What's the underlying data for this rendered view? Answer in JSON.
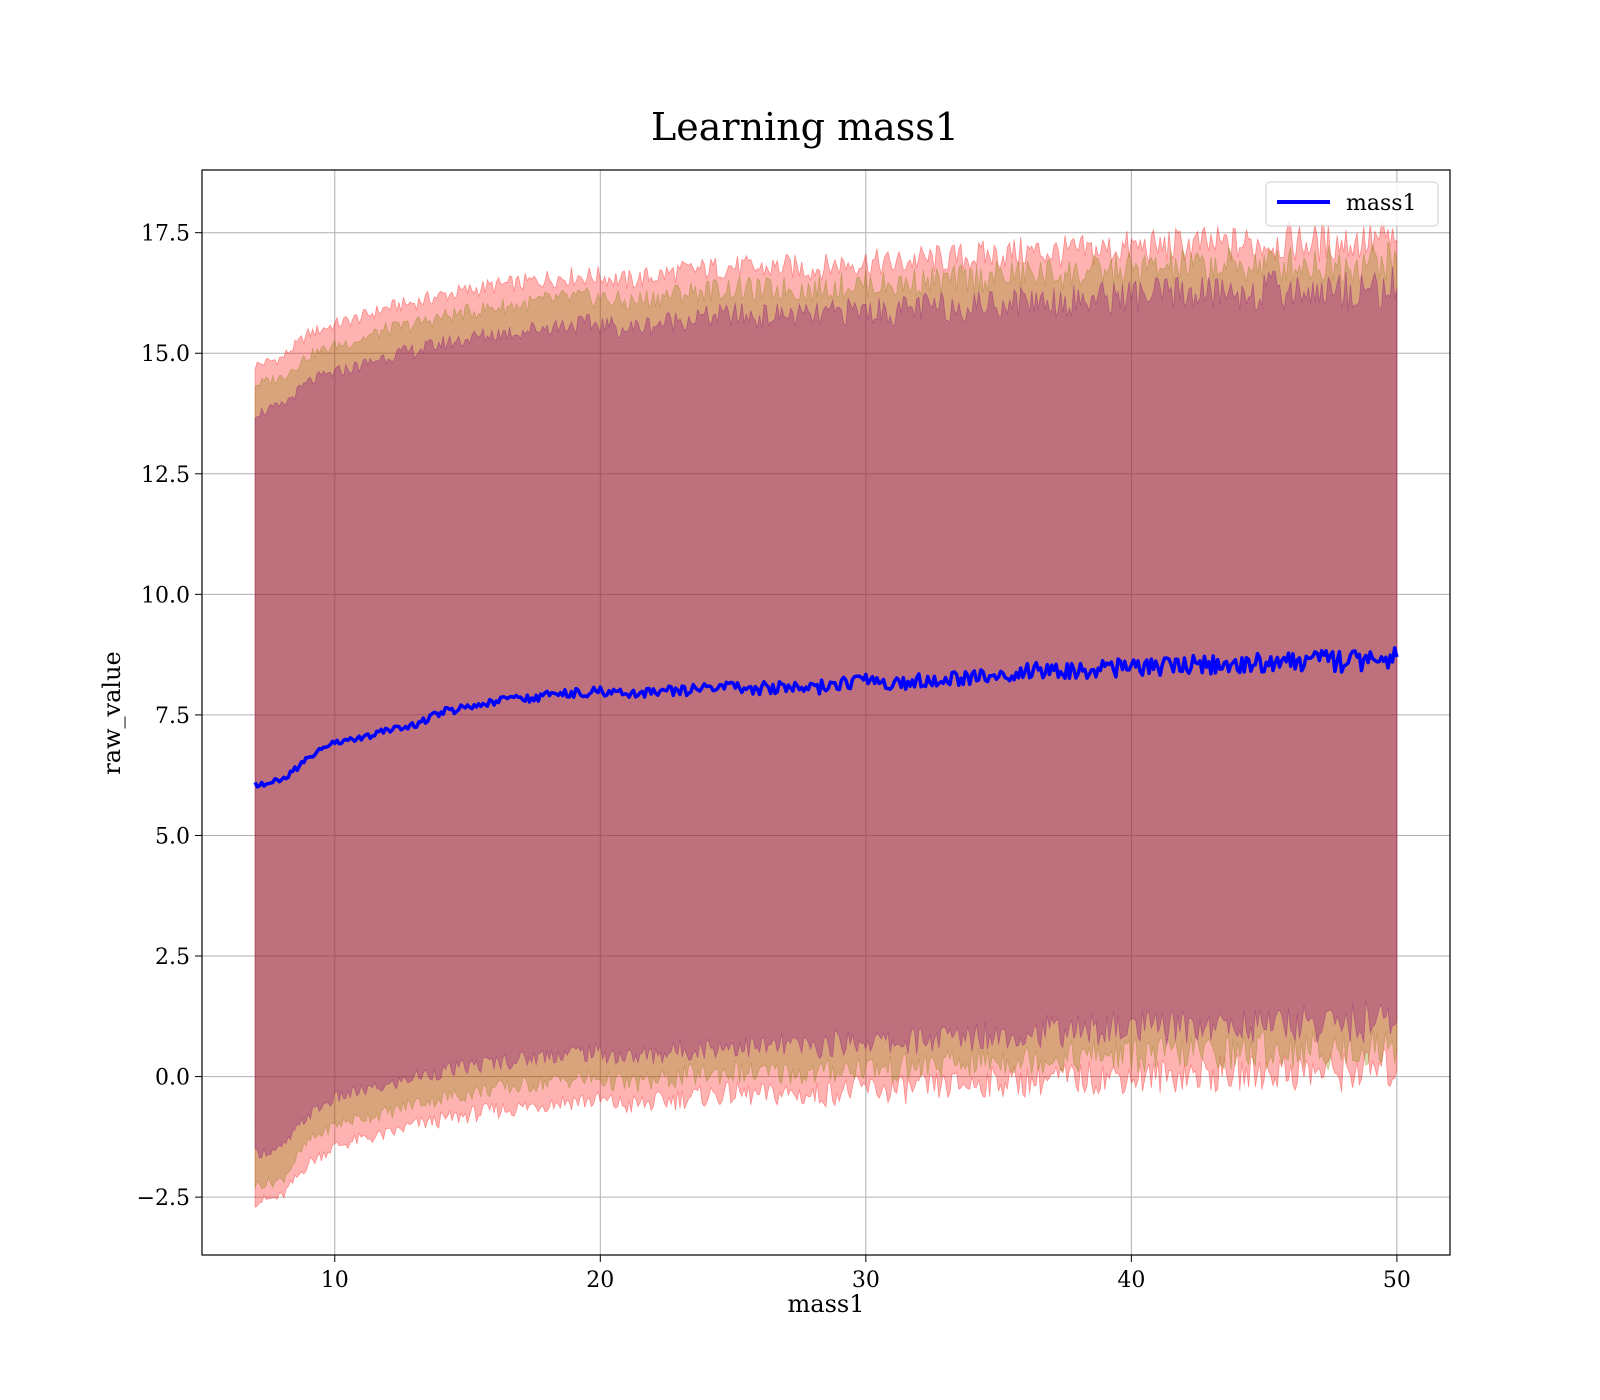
{
  "chart_data": {
    "type": "line",
    "title": "Learning mass1",
    "xlabel": "mass1",
    "ylabel": "raw_value",
    "xlim": [
      5,
      52
    ],
    "ylim": [
      -3.7,
      18.8
    ],
    "x_ticks": [
      10,
      20,
      30,
      40,
      50
    ],
    "x_tick_labels": [
      "10",
      "20",
      "30",
      "40",
      "50"
    ],
    "y_ticks": [
      -2.5,
      0.0,
      2.5,
      5.0,
      7.5,
      10.0,
      12.5,
      15.0,
      17.5
    ],
    "y_tick_labels": [
      "−2.5",
      "0.0",
      "2.5",
      "5.0",
      "7.5",
      "10.0",
      "12.5",
      "15.0",
      "17.5"
    ],
    "grid": true,
    "legend": {
      "placement": "top-right",
      "entries": [
        "mass1"
      ]
    },
    "series": [
      {
        "name": "mass1",
        "color": "#0000ff",
        "x": [
          7.0,
          8.0,
          9.0,
          10.0,
          11.0,
          12.0,
          13.0,
          14.0,
          15.0,
          16.0,
          17.0,
          18.0,
          19.0,
          20.0,
          21.0,
          22.0,
          23.0,
          24.0,
          25.0,
          26.0,
          27.0,
          28.0,
          29.0,
          30.0,
          31.0,
          32.0,
          33.0,
          34.0,
          35.0,
          36.0,
          37.0,
          38.0,
          39.0,
          40.0,
          41.0,
          42.0,
          43.0,
          44.0,
          45.0,
          46.0,
          47.0,
          48.0,
          49.0,
          50.0
        ],
        "y": [
          6.05,
          6.15,
          6.6,
          6.95,
          7.0,
          7.2,
          7.3,
          7.55,
          7.65,
          7.75,
          7.85,
          7.9,
          7.95,
          8.0,
          7.9,
          7.95,
          8.0,
          8.05,
          8.1,
          8.05,
          8.1,
          8.05,
          8.15,
          8.2,
          8.15,
          8.2,
          8.25,
          8.3,
          8.35,
          8.4,
          8.45,
          8.4,
          8.45,
          8.5,
          8.5,
          8.55,
          8.55,
          8.55,
          8.6,
          8.6,
          8.65,
          8.6,
          8.65,
          8.7
        ]
      }
    ],
    "bands": [
      {
        "color": "#ff0000",
        "opacity": 0.3,
        "upper": [
          14.75,
          14.9,
          15.4,
          15.6,
          15.75,
          15.95,
          16.05,
          16.2,
          16.3,
          16.4,
          16.45,
          16.55,
          16.6,
          16.6,
          16.5,
          16.6,
          16.7,
          16.75,
          16.8,
          16.75,
          16.8,
          16.75,
          16.85,
          16.9,
          16.85,
          16.95,
          16.95,
          17.0,
          17.05,
          17.1,
          17.1,
          17.1,
          17.15,
          17.2,
          17.2,
          17.25,
          17.25,
          17.25,
          17.3,
          17.3,
          17.3,
          17.3,
          17.35,
          17.35
        ],
        "lower": [
          -2.6,
          -2.5,
          -1.8,
          -1.45,
          -1.3,
          -1.2,
          -1.0,
          -0.9,
          -0.8,
          -0.7,
          -0.65,
          -0.55,
          -0.5,
          -0.5,
          -0.6,
          -0.55,
          -0.45,
          -0.4,
          -0.35,
          -0.4,
          -0.35,
          -0.4,
          -0.3,
          -0.25,
          -0.3,
          -0.25,
          -0.2,
          -0.15,
          -0.1,
          -0.1,
          -0.05,
          -0.05,
          0.0,
          0.0,
          0.0,
          0.05,
          0.05,
          0.05,
          0.1,
          0.1,
          0.1,
          0.1,
          0.15,
          0.15
        ]
      },
      {
        "color": "#808000",
        "opacity": 0.3,
        "upper": [
          14.35,
          14.5,
          14.95,
          15.15,
          15.3,
          15.5,
          15.6,
          15.75,
          15.85,
          15.95,
          16.0,
          16.1,
          16.15,
          16.15,
          16.05,
          16.15,
          16.25,
          16.3,
          16.35,
          16.3,
          16.35,
          16.3,
          16.4,
          16.45,
          16.4,
          16.5,
          16.5,
          16.55,
          16.6,
          16.65,
          16.65,
          16.65,
          16.7,
          16.75,
          16.75,
          16.8,
          16.8,
          16.8,
          16.85,
          16.85,
          16.85,
          16.85,
          16.9,
          16.9
        ],
        "lower": [
          -2.25,
          -2.15,
          -1.35,
          -1.0,
          -0.85,
          -0.75,
          -0.55,
          -0.45,
          -0.35,
          -0.25,
          -0.2,
          -0.1,
          -0.05,
          -0.05,
          -0.15,
          -0.1,
          0.0,
          0.05,
          0.1,
          0.05,
          0.1,
          0.05,
          0.15,
          0.2,
          0.15,
          0.2,
          0.25,
          0.3,
          0.35,
          0.35,
          0.4,
          0.4,
          0.45,
          0.45,
          0.45,
          0.5,
          0.5,
          0.5,
          0.55,
          0.55,
          0.55,
          0.55,
          0.6,
          0.6
        ]
      },
      {
        "color": "#800080",
        "opacity": 0.3,
        "upper": [
          13.75,
          13.9,
          14.4,
          14.6,
          14.75,
          14.95,
          15.05,
          15.2,
          15.3,
          15.4,
          15.45,
          15.55,
          15.6,
          15.6,
          15.5,
          15.6,
          15.7,
          15.75,
          15.8,
          15.75,
          15.8,
          15.75,
          15.85,
          15.9,
          15.85,
          15.95,
          15.95,
          16.0,
          16.05,
          16.1,
          16.1,
          16.1,
          16.15,
          16.2,
          16.2,
          16.25,
          16.25,
          16.25,
          16.3,
          16.3,
          16.3,
          16.3,
          16.35,
          16.35
        ],
        "lower": [
          -1.6,
          -1.5,
          -0.8,
          -0.45,
          -0.3,
          -0.2,
          0.0,
          0.1,
          0.2,
          0.3,
          0.35,
          0.45,
          0.5,
          0.5,
          0.4,
          0.45,
          0.55,
          0.6,
          0.65,
          0.6,
          0.65,
          0.6,
          0.7,
          0.75,
          0.7,
          0.75,
          0.8,
          0.85,
          0.9,
          0.9,
          0.95,
          0.95,
          1.0,
          1.0,
          1.0,
          1.05,
          1.05,
          1.05,
          1.1,
          1.1,
          1.1,
          1.1,
          1.15,
          1.15
        ]
      }
    ]
  }
}
